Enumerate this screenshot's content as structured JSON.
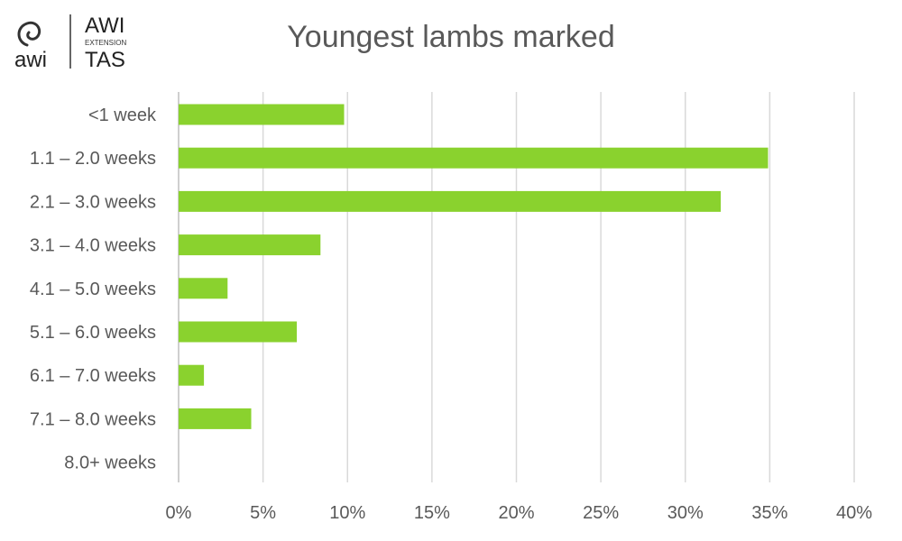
{
  "logo": {
    "brand": "awi",
    "line1": "AWI",
    "line2": "EXTENSION",
    "line3": "TAS"
  },
  "chart_data": {
    "type": "bar",
    "orientation": "horizontal",
    "title": "Youngest lambs marked",
    "xlabel": "",
    "ylabel": "",
    "categories": [
      "<1 week",
      "1.1 – 2.0 weeks",
      "2.1 – 3.0 weeks",
      "3.1 – 4.0 weeks",
      "4.1 – 5.0 weeks",
      "5.1 – 6.0 weeks",
      "6.1 – 7.0 weeks",
      "7.1 – 8.0 weeks",
      "8.0+ weeks"
    ],
    "values": [
      9.8,
      34.9,
      32.1,
      8.4,
      2.9,
      7.0,
      1.5,
      4.3,
      0
    ],
    "xlim": [
      0,
      40
    ],
    "xticks": [
      "0%",
      "5%",
      "10%",
      "15%",
      "20%",
      "25%",
      "30%",
      "35%",
      "40%"
    ],
    "grid": "vertical",
    "bar_color": "#8ad22e",
    "grid_color": "#d9d9d9"
  }
}
